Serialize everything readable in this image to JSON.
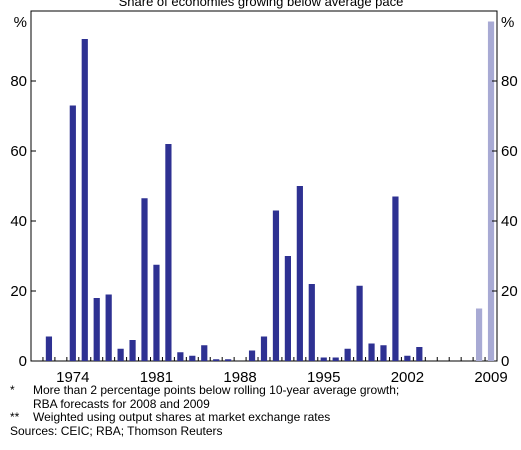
{
  "chart_data": {
    "type": "bar",
    "title": "Share of economies growing below average pace",
    "y_unit_left": "%",
    "y_unit_right": "%",
    "ylim": [
      0,
      100
    ],
    "yticks": [
      0,
      20,
      40,
      60,
      80
    ],
    "xlim": [
      1971,
      2010
    ],
    "xticks": [
      1974,
      1981,
      1988,
      1995,
      2002,
      2009
    ],
    "grid": false,
    "legend": "none",
    "colors": {
      "actual": "#2e3192",
      "forecast": "#a8aad4"
    },
    "series": [
      {
        "kind": "actual",
        "x": [
          1972,
          1973,
          1974,
          1975,
          1976,
          1977,
          1978,
          1979,
          1980,
          1981,
          1982,
          1983,
          1984,
          1985,
          1986,
          1987,
          1988,
          1989,
          1990,
          1991,
          1992,
          1993,
          1994,
          1995,
          1996,
          1997,
          1998,
          1999,
          2000,
          2001,
          2002,
          2003,
          2004,
          2005,
          2006,
          2007
        ],
        "values": [
          7,
          0,
          73,
          92,
          18,
          19,
          3.5,
          6,
          46.5,
          27.5,
          62,
          2.5,
          1.5,
          4.5,
          0.5,
          0.5,
          0,
          3,
          7,
          43,
          30,
          50,
          22,
          1,
          1,
          3.5,
          21.5,
          5,
          4.5,
          47,
          1.5,
          4,
          0,
          0,
          0,
          0
        ]
      },
      {
        "kind": "forecast",
        "x": [
          2008,
          2009
        ],
        "values": [
          15,
          97
        ]
      }
    ]
  },
  "notes": [
    {
      "mark": "*",
      "text": "More than 2 percentage points below rolling 10-year average growth;\nRBA forecasts for 2008 and 2009"
    },
    {
      "mark": "**",
      "text": "Weighted using output shares at market exchange rates"
    }
  ],
  "sources": "Sources: CEIC; RBA; Thomson Reuters"
}
